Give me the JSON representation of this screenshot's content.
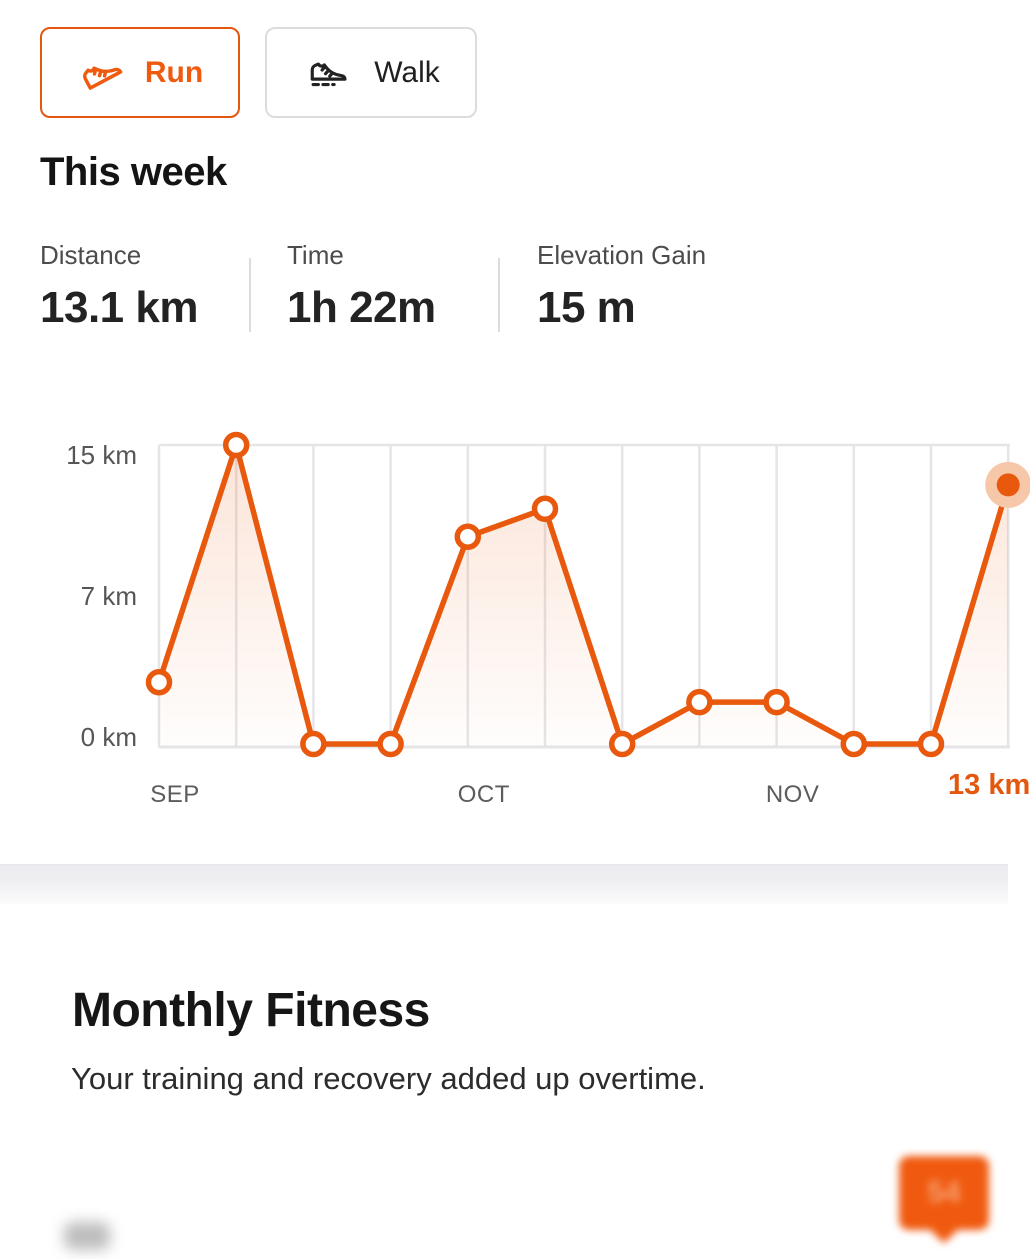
{
  "toggle": {
    "run_label": "Run",
    "walk_label": "Walk"
  },
  "week_summary": {
    "title": "This week",
    "stats": [
      {
        "label": "Distance",
        "value": "13.1 km"
      },
      {
        "label": "Time",
        "value": "1h 22m"
      },
      {
        "label": "Elevation Gain",
        "value": "15 m"
      }
    ]
  },
  "chart_data": {
    "type": "line",
    "series": [
      {
        "name": "weekly-distance",
        "values": [
          3.1,
          15,
          0,
          0,
          10.4,
          11.8,
          0,
          2.1,
          2.1,
          0,
          0,
          13
        ]
      }
    ],
    "unit": "km",
    "ylim": [
      0,
      15
    ],
    "y_ticks": [
      {
        "label": "15 km",
        "value": 15
      },
      {
        "label": "7 km",
        "value": 7
      },
      {
        "label": "0 km",
        "value": 0
      }
    ],
    "x_axis": {
      "month_labels": [
        {
          "label": "SEP",
          "week_index": 0
        },
        {
          "label": "OCT",
          "week_index": 4
        },
        {
          "label": "NOV",
          "week_index": 8
        }
      ]
    },
    "highlight": {
      "index": 11,
      "label": "13 km"
    },
    "grid": "vertical-weekly-lines",
    "legend": "none",
    "line_color": "#e8580d",
    "marker_fill": "#ffffff",
    "halo_color": "#f6c8a9",
    "area_fill_top": "rgba(234,88,12,0.16)",
    "area_fill_bottom": "rgba(234,88,12,0.01)"
  },
  "monthly_fitness": {
    "title": "Monthly Fitness",
    "subtitle": "Your training and recovery added up overtime.",
    "tooltip_value": "54"
  },
  "colors": {
    "accent_orange": "#e8580d",
    "run_text": "#ef5a0e",
    "grid_gray": "#e5e5e8",
    "axis_text": "#565656",
    "badge_orange": "#f05a10"
  }
}
